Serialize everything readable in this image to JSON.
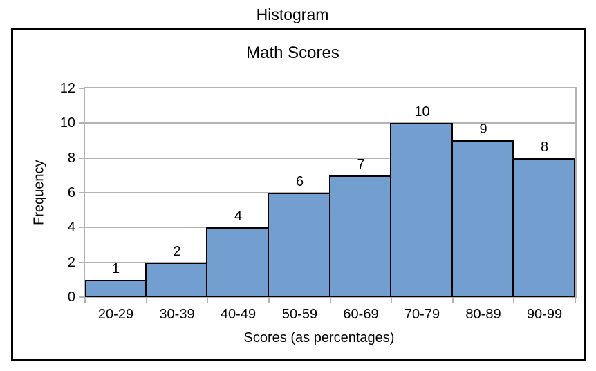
{
  "page": {
    "title": "Histogram"
  },
  "chart_data": {
    "type": "bar",
    "subtype": "histogram",
    "title": "Math Scores",
    "xlabel": "Scores (as percentages)",
    "ylabel": "Frequency",
    "categories": [
      "20-29",
      "30-39",
      "40-49",
      "50-59",
      "60-69",
      "70-79",
      "80-89",
      "90-99"
    ],
    "values": [
      1,
      2,
      4,
      6,
      7,
      10,
      9,
      8
    ],
    "ylim": [
      0,
      12
    ],
    "yticks": [
      0,
      2,
      4,
      6,
      8,
      10,
      12
    ],
    "grid": true,
    "legend_position": "none",
    "data_labels": true,
    "bar_gap": 0,
    "colors": {
      "bar_fill": "#729FCF",
      "bar_border": "#000000",
      "grid_line": "#B3B3B3",
      "frame_border": "#000000",
      "text": "#000000",
      "background": "#FFFFFF"
    }
  }
}
